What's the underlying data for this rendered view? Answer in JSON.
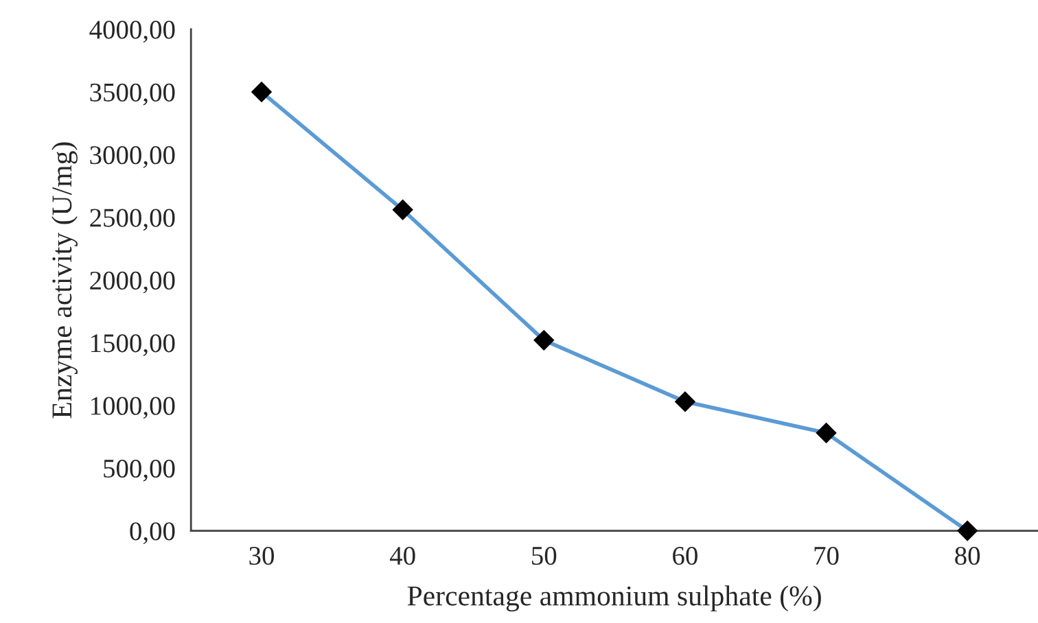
{
  "chart_data": {
    "type": "line",
    "xlabel": "Percentage ammonium sulphate (%)",
    "ylabel": "Enzyme activity (U/mg)",
    "categories": [
      "30",
      "40",
      "50",
      "60",
      "70",
      "80"
    ],
    "series": [
      {
        "color": "#5b9bd5",
        "values": [
          3500,
          2560,
          1520,
          1030,
          780,
          0
        ]
      }
    ],
    "ylim": [
      0,
      4000
    ],
    "yticks": [
      {
        "value": 0,
        "label": "0,00"
      },
      {
        "value": 500,
        "label": "500,00"
      },
      {
        "value": 1000,
        "label": "1000,00"
      },
      {
        "value": 1500,
        "label": "1500,00"
      },
      {
        "value": 2000,
        "label": "2000,00"
      },
      {
        "value": 2500,
        "label": "2500,00"
      },
      {
        "value": 3000,
        "label": "3000,00"
      },
      {
        "value": 3500,
        "label": "3500,00"
      },
      {
        "value": 4000,
        "label": "4000,00"
      }
    ],
    "grid": false,
    "marker": "diamond",
    "line_style": "solid"
  }
}
